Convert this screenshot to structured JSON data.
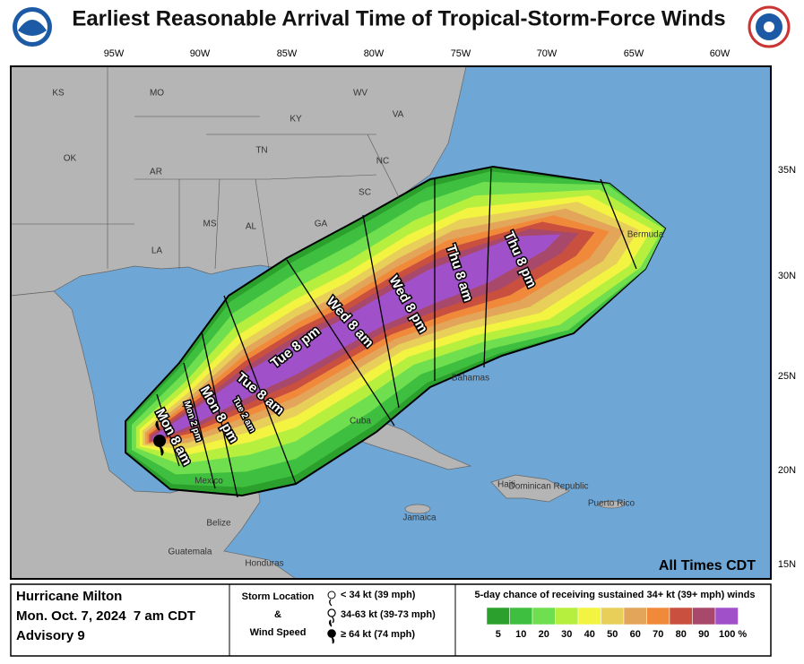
{
  "header": {
    "title": "Earliest Reasonable Arrival Time of Tropical-Storm-Force Winds"
  },
  "map": {
    "longitude_labels": [
      "95W",
      "90W",
      "85W",
      "80W",
      "75W",
      "70W",
      "65W",
      "60W"
    ],
    "latitude_labels": [
      "35N",
      "30N",
      "25N",
      "20N",
      "15N"
    ],
    "state_labels": [
      "KS",
      "MO",
      "WV",
      "VA",
      "KY",
      "OK",
      "AR",
      "TN",
      "NC",
      "SC",
      "MS",
      "AL",
      "GA",
      "LA"
    ],
    "place_labels": [
      "Bermuda",
      "Bahamas",
      "Cuba",
      "Jamaica",
      "Haiti",
      "Dominican Republic",
      "Puerto Rico",
      "Mexico",
      "Belize",
      "Guatemala",
      "Honduras"
    ],
    "arrival_labels": [
      "Mon 8 am",
      "Mon 2 pm",
      "Mon 8 pm",
      "Tue 2 am",
      "Tue 8 am",
      "Tue 8 pm",
      "Wed 8 am",
      "Wed 8 pm",
      "Thu 8 am",
      "Thu 8 pm"
    ],
    "time_note": "All Times CDT"
  },
  "footer": {
    "storm_name": "Hurricane Milton",
    "issued": "Mon. Oct. 7, 2024  7 am CDT",
    "advisory": "Advisory 9",
    "storm_location_title": [
      "Storm Location",
      "&",
      "Wind Speed"
    ],
    "wind_categories": [
      "< 34 kt (39 mph)",
      "34-63 kt (39-73 mph)",
      "≥ 64 kt (74 mph)"
    ],
    "scale_title": "5-day chance of receiving sustained 34+ kt (39+ mph) winds",
    "scale": [
      {
        "label": "5",
        "color": "#2ca02c"
      },
      {
        "label": "10",
        "color": "#3fbf3f"
      },
      {
        "label": "20",
        "color": "#6fdf4f"
      },
      {
        "label": "30",
        "color": "#b7ef3f"
      },
      {
        "label": "40",
        "color": "#f3f341"
      },
      {
        "label": "50",
        "color": "#e8cf5a"
      },
      {
        "label": "60",
        "color": "#e3a55a"
      },
      {
        "label": "70",
        "color": "#f08a3a"
      },
      {
        "label": "80",
        "color": "#c9503f"
      },
      {
        "label": "90",
        "color": "#a8486a"
      },
      {
        "label": "100 %",
        "color": "#a050c8"
      }
    ]
  }
}
